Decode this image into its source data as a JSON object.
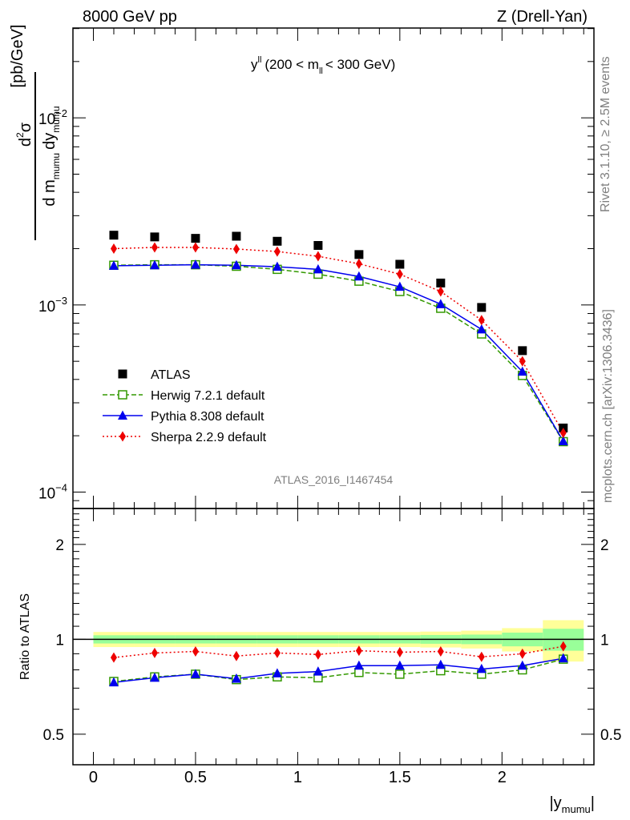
{
  "header": {
    "left": "8000 GeV pp",
    "right": "Z (Drell-Yan)"
  },
  "main_panel": {
    "title_main": "y",
    "title_sup": "ll",
    "title_range_a": "(200 < m",
    "title_range_sub": "ll",
    "title_range_b": "< 300 GeV)",
    "ylabel_d2": "d",
    "ylabel_sup2": "2",
    "ylabel_sigma": "σ",
    "ylabel_den_a": "d m",
    "ylabel_den_sub1": "mumu",
    "ylabel_den_b": "dy",
    "ylabel_den_sub2": "mumu",
    "ylabel_unit": "[pb/GeV]",
    "ytick_base": "10",
    "ytick_exps": [
      "−2",
      "−3",
      "−4"
    ],
    "watermark": "ATLAS_2016_I1467454"
  },
  "ratio_panel": {
    "ylabel": "Ratio to ATLAS",
    "yticks": [
      "2",
      "1",
      "0.5"
    ]
  },
  "xaxis": {
    "label_main": "|y",
    "label_sub": "mumu",
    "label_end": "|",
    "ticks": [
      "0",
      "0.5",
      "1",
      "1.5",
      "2"
    ]
  },
  "side_text": {
    "rivet": "Rivet 3.1.10, ≥ 2.5M events",
    "mcplots": "mcplots.cern.ch [arXiv:1306.3436]"
  },
  "legend": [
    {
      "label": "ATLAS",
      "color": "#000000",
      "marker": "filled-square",
      "line": "none"
    },
    {
      "label": "Herwig 7.2.1 default",
      "color": "#339900",
      "marker": "open-square",
      "line": "dashed"
    },
    {
      "label": "Pythia 8.308 default",
      "color": "#0000ee",
      "marker": "triangle",
      "line": "solid"
    },
    {
      "label": "Sherpa 2.2.9 default",
      "color": "#ee0000",
      "marker": "diamond",
      "line": "dotted"
    }
  ],
  "chart_data": [
    {
      "type": "scatter",
      "title": "y^ll (200 < m_ll < 300 GeV)",
      "xlabel": "|y_mumu|",
      "ylabel": "d^2σ / (d m_mumu dy_mumu) [pb/GeV]",
      "yscale": "log",
      "xlim": [
        -0.1,
        2.45
      ],
      "ylim": [
        8.17e-05,
        0.0302
      ],
      "x": [
        0.1,
        0.3,
        0.5,
        0.7,
        0.9,
        1.1,
        1.3,
        1.5,
        1.7,
        1.9,
        2.1,
        2.3
      ],
      "series": [
        {
          "name": "ATLAS",
          "values": [
            0.00236,
            0.00231,
            0.00227,
            0.00233,
            0.00219,
            0.00208,
            0.00186,
            0.00165,
            0.00131,
            0.00097,
            0.00057,
            0.00022
          ]
        },
        {
          "name": "Herwig 7.2.1 default",
          "values": [
            0.00163,
            0.00164,
            0.00164,
            0.00161,
            0.00155,
            0.00146,
            0.00134,
            0.00118,
            0.00096,
            0.0007,
            0.00042,
            0.000186
          ]
        },
        {
          "name": "Pythia 8.308 default",
          "values": [
            0.00162,
            0.00163,
            0.00164,
            0.00163,
            0.0016,
            0.00155,
            0.00142,
            0.00125,
            0.00101,
            0.00074,
            0.00044,
            0.000187
          ]
        },
        {
          "name": "Sherpa 2.2.9 default",
          "values": [
            0.002,
            0.00203,
            0.00203,
            0.00199,
            0.00193,
            0.00182,
            0.00166,
            0.00146,
            0.00118,
            0.00083,
            0.0005,
            0.000207
          ]
        }
      ]
    },
    {
      "type": "line",
      "ylabel": "Ratio to ATLAS",
      "yscale": "log",
      "xlim": [
        -0.1,
        2.45
      ],
      "ylim": [
        0.4,
        2.6
      ],
      "x": [
        0.1,
        0.3,
        0.5,
        0.7,
        0.9,
        1.1,
        1.3,
        1.5,
        1.7,
        1.9,
        2.1,
        2.3
      ],
      "bins": [
        0.0,
        0.2,
        0.4,
        0.6,
        0.8,
        1.0,
        1.2,
        1.4,
        1.6,
        1.8,
        2.0,
        2.2,
        2.4
      ],
      "band_inner_halfwidth": [
        0.03,
        0.03,
        0.03,
        0.03,
        0.03,
        0.03,
        0.03,
        0.03,
        0.032,
        0.035,
        0.05,
        0.08
      ],
      "band_outer_halfwidth": [
        0.055,
        0.055,
        0.055,
        0.055,
        0.055,
        0.055,
        0.055,
        0.055,
        0.058,
        0.065,
        0.085,
        0.15
      ],
      "band_colors": {
        "outer": "#ffff99",
        "inner": "#99ff99"
      },
      "series": [
        {
          "name": "Herwig 7.2.1 default",
          "values": [
            0.735,
            0.76,
            0.775,
            0.745,
            0.76,
            0.755,
            0.785,
            0.775,
            0.795,
            0.775,
            0.8,
            0.865
          ]
        },
        {
          "name": "Pythia 8.308 default",
          "values": [
            0.73,
            0.755,
            0.775,
            0.75,
            0.78,
            0.79,
            0.825,
            0.825,
            0.83,
            0.805,
            0.825,
            0.87
          ]
        },
        {
          "name": "Sherpa 2.2.9 default",
          "values": [
            0.875,
            0.905,
            0.915,
            0.885,
            0.905,
            0.895,
            0.92,
            0.91,
            0.915,
            0.88,
            0.9,
            0.95
          ]
        }
      ]
    }
  ]
}
